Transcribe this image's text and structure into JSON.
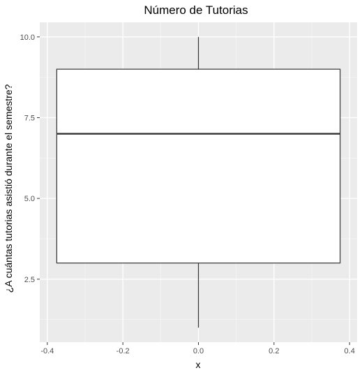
{
  "chart_data": {
    "type": "boxplot",
    "title": "Número de Tutorias",
    "xlabel": "x",
    "ylabel": "¿A cuántas tutorias asistió durante el semestre?",
    "xlim": [
      -0.42,
      0.42
    ],
    "ylim": [
      0.55,
      10.45
    ],
    "x_ticks": [
      {
        "value": -0.4,
        "label": "-0.4"
      },
      {
        "value": -0.2,
        "label": "-0.2"
      },
      {
        "value": 0.0,
        "label": "0.0"
      },
      {
        "value": 0.2,
        "label": "0.2"
      },
      {
        "value": 0.4,
        "label": "0.4"
      }
    ],
    "y_ticks": [
      {
        "value": 2.5,
        "label": "2.5"
      },
      {
        "value": 5.0,
        "label": "5.0"
      },
      {
        "value": 7.5,
        "label": "7.5"
      },
      {
        "value": 10.0,
        "label": "10.0"
      }
    ],
    "box": {
      "x_center": 0.0,
      "width": 0.75,
      "whisker_low": 1,
      "q1": 3,
      "median": 7,
      "q3": 9,
      "whisker_high": 10
    },
    "colors": {
      "panel_background": "#ebebeb",
      "grid_major": "#ffffff",
      "grid_minor": "#f5f5f5",
      "box_fill": "#ffffff",
      "box_stroke": "#333333"
    }
  }
}
